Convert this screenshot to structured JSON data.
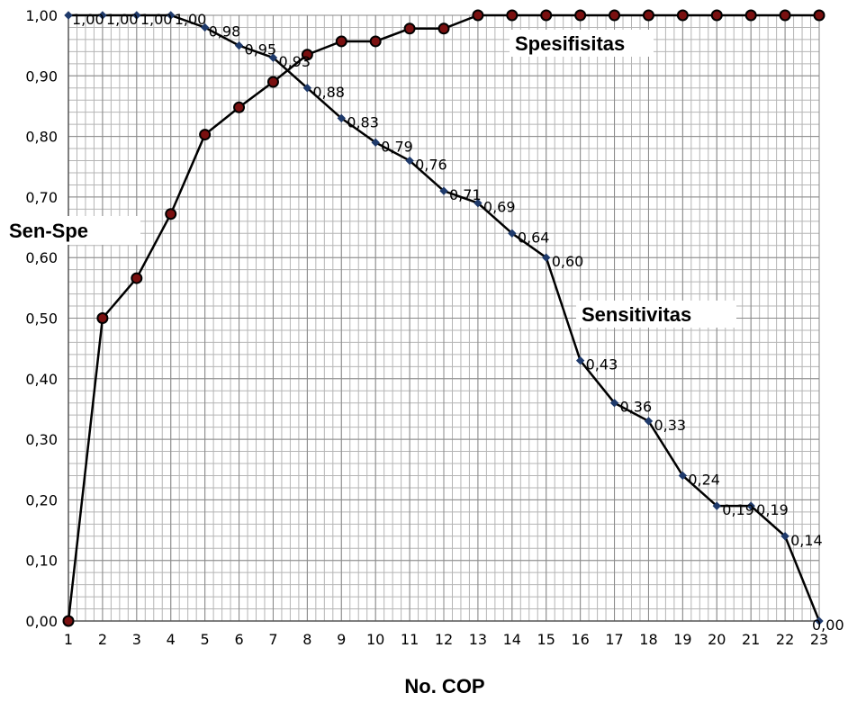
{
  "chart_data": {
    "type": "line",
    "xlabel": "No. COP",
    "ylabel": "Sen-Spe",
    "x": [
      1,
      2,
      3,
      4,
      5,
      6,
      7,
      8,
      9,
      10,
      11,
      12,
      13,
      14,
      15,
      16,
      17,
      18,
      19,
      20,
      21,
      22,
      23
    ],
    "ylim": [
      0,
      1
    ],
    "xlim": [
      1,
      23
    ],
    "grid": true,
    "y_ticks": [
      "0,00",
      "0,10",
      "0,20",
      "0,30",
      "0,40",
      "0,50",
      "0,60",
      "0,70",
      "0,80",
      "0,90",
      "1,00"
    ],
    "x_ticks": [
      "1",
      "2",
      "3",
      "4",
      "5",
      "6",
      "7",
      "8",
      "9",
      "10",
      "11",
      "12",
      "13",
      "14",
      "15",
      "16",
      "17",
      "18",
      "19",
      "20",
      "21",
      "22",
      "23"
    ],
    "series": [
      {
        "name": "Sensitivitas",
        "color": "#1f3a6b",
        "values": [
          1.0,
          1.0,
          1.0,
          1.0,
          0.98,
          0.95,
          0.93,
          0.88,
          0.83,
          0.79,
          0.76,
          0.71,
          0.69,
          0.64,
          0.6,
          0.43,
          0.36,
          0.33,
          0.24,
          0.19,
          0.19,
          0.14,
          0.0
        ],
        "data_labels": [
          "1,00",
          "1,00",
          "1,00",
          "1,00",
          "0,98",
          "0,95",
          "0,93",
          "0,88",
          "0,83",
          "0,79",
          "0,76",
          "0,71",
          "0,69",
          "0,64",
          "0,60",
          "0,43",
          "0,36",
          "0,33",
          "0,24",
          "0,19",
          "0,19",
          "0,14",
          "0,00"
        ]
      },
      {
        "name": "Spesifisitas",
        "color": "#8b1a1a",
        "values": [
          0.0,
          0.5,
          0.566,
          0.672,
          0.803,
          0.848,
          0.89,
          0.935,
          0.957,
          0.957,
          0.978,
          0.978,
          1.0,
          1.0,
          1.0,
          1.0,
          1.0,
          1.0,
          1.0,
          1.0,
          1.0,
          1.0,
          1.0
        ]
      }
    ]
  },
  "labels": {
    "spesifisitas": "Spesifisitas",
    "sensitivitas": "Sensitivitas",
    "y_title": "Sen-Spe",
    "x_title": "No. COP"
  }
}
